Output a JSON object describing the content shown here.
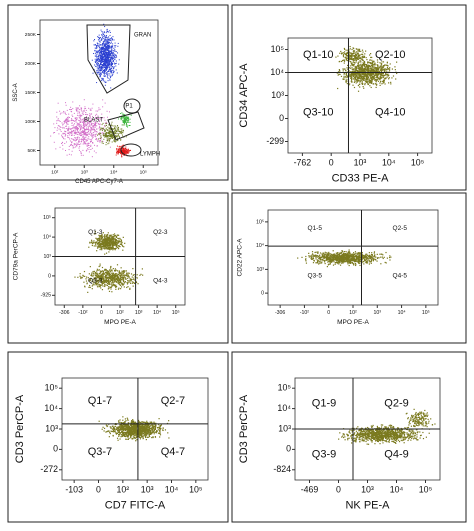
{
  "panels": [
    {
      "y_label": "SSC-A",
      "x_label": "CD45 APC-Cy7-A",
      "gates": [
        "GRAN",
        "P1",
        "BLAST",
        "LYMPH"
      ],
      "xticks": [
        "10²",
        "10³",
        "10⁴",
        "10⁵"
      ],
      "yticks": [
        "250K",
        "200K",
        "150K",
        "100K",
        "50K"
      ]
    },
    {
      "y_label": "CD34 APC-A",
      "x_label": "CD33 PE-A",
      "quadrants": [
        "Q1-10",
        "Q2-10",
        "Q3-10",
        "Q4-10"
      ],
      "xticks": [
        "-762",
        "0",
        "10³",
        "10⁴",
        "10⁵"
      ],
      "yticks": [
        "10⁵",
        "10⁴",
        "10³",
        "0",
        "-299"
      ]
    },
    {
      "y_label": "CD79a PerCP-A",
      "x_label": "MPO PE-A",
      "quadrants": [
        "Q1-3",
        "Q2-3",
        "Q3-3",
        "Q4-3"
      ],
      "xticks": [
        "-306",
        "-10²",
        "0",
        "10²",
        "10³",
        "10⁴",
        "10⁵"
      ],
      "yticks": [
        "10⁵",
        "10⁴",
        "10³",
        "0",
        "-925"
      ]
    },
    {
      "y_label": "CD22 APC-A",
      "x_label": "MPO PE-A",
      "quadrants": [
        "Q1-5",
        "Q2-5",
        "Q3-5",
        "Q4-5"
      ],
      "xticks": [
        "-306",
        "-10²",
        "0",
        "10²",
        "10³",
        "10⁴",
        "10⁵"
      ],
      "yticks": [
        "10⁵",
        "10⁴",
        "10³",
        "0"
      ]
    },
    {
      "y_label": "CD3 PerCP-A",
      "x_label": "CD7 FITC-A",
      "quadrants": [
        "Q1-7",
        "Q2-7",
        "Q3-7",
        "Q4-7"
      ],
      "xticks": [
        "-103",
        "0",
        "10²",
        "10³",
        "10⁴",
        "10⁵"
      ],
      "yticks": [
        "10⁵",
        "10⁴",
        "10³",
        "0",
        "-272"
      ]
    },
    {
      "y_label": "CD3 PerCP-A",
      "x_label": "NK PE-A",
      "quadrants": [
        "Q1-9",
        "Q2-9",
        "Q3-9",
        "Q4-9"
      ],
      "xticks": [
        "-469",
        "0",
        "10³",
        "10⁴",
        "10⁵"
      ],
      "yticks": [
        "10⁵",
        "10⁴",
        "10³",
        "0",
        "-824"
      ]
    }
  ]
}
